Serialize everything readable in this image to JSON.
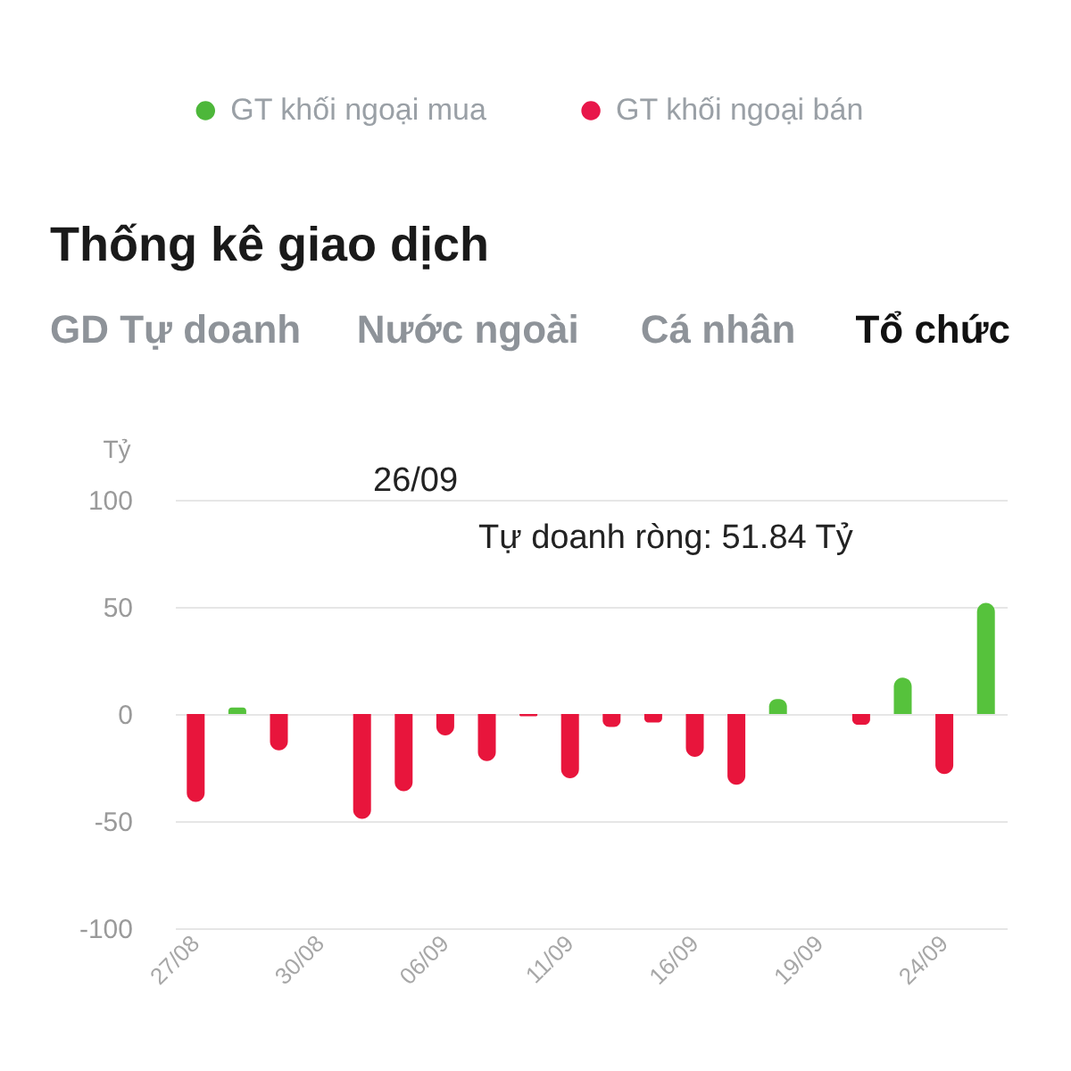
{
  "chart_data": [
    {
      "type": "other",
      "series": [
        {
          "name": "GT khối ngoại mua",
          "color": "#4db73a"
        },
        {
          "name": "GT khối ngoại bán",
          "color": "#e8174a"
        }
      ],
      "legend": "bottom"
    },
    {
      "type": "bar",
      "title": "Thống kê giao dịch",
      "ylabel": "Tỷ",
      "categories": [
        "27/08",
        null,
        null,
        "30/08",
        null,
        null,
        "06/09",
        null,
        null,
        "11/09",
        null,
        null,
        "16/09",
        null,
        null,
        "19/09",
        null,
        null,
        "24/09",
        null
      ],
      "values": [
        -41,
        3,
        -17,
        null,
        -49,
        -36,
        -10,
        -22,
        -1,
        -30,
        -6,
        -4,
        -20,
        -33,
        7,
        null,
        -5,
        17,
        -28,
        51.84
      ],
      "colors": [
        "#e8153c",
        "#56c23c",
        "#e8153c",
        null,
        "#e8153c",
        "#e8153c",
        "#e8153c",
        "#e8153c",
        "#e8153c",
        "#e8153c",
        "#e8153c",
        "#e8153c",
        "#e8153c",
        "#e8153c",
        "#56c23c",
        null,
        "#e8153c",
        "#56c23c",
        "#e8153c",
        "#56c23c"
      ],
      "ylim": [
        -100,
        100
      ],
      "yticks": [
        -100,
        -50,
        0,
        50,
        100
      ],
      "grid": "y",
      "annotations": [
        "GD Tự doanh",
        "Nước ngoài",
        "Cá nhân",
        "Tổ chức",
        "26/09",
        "Tự doanh ròng: 51.84 Tỷ"
      ]
    }
  ]
}
